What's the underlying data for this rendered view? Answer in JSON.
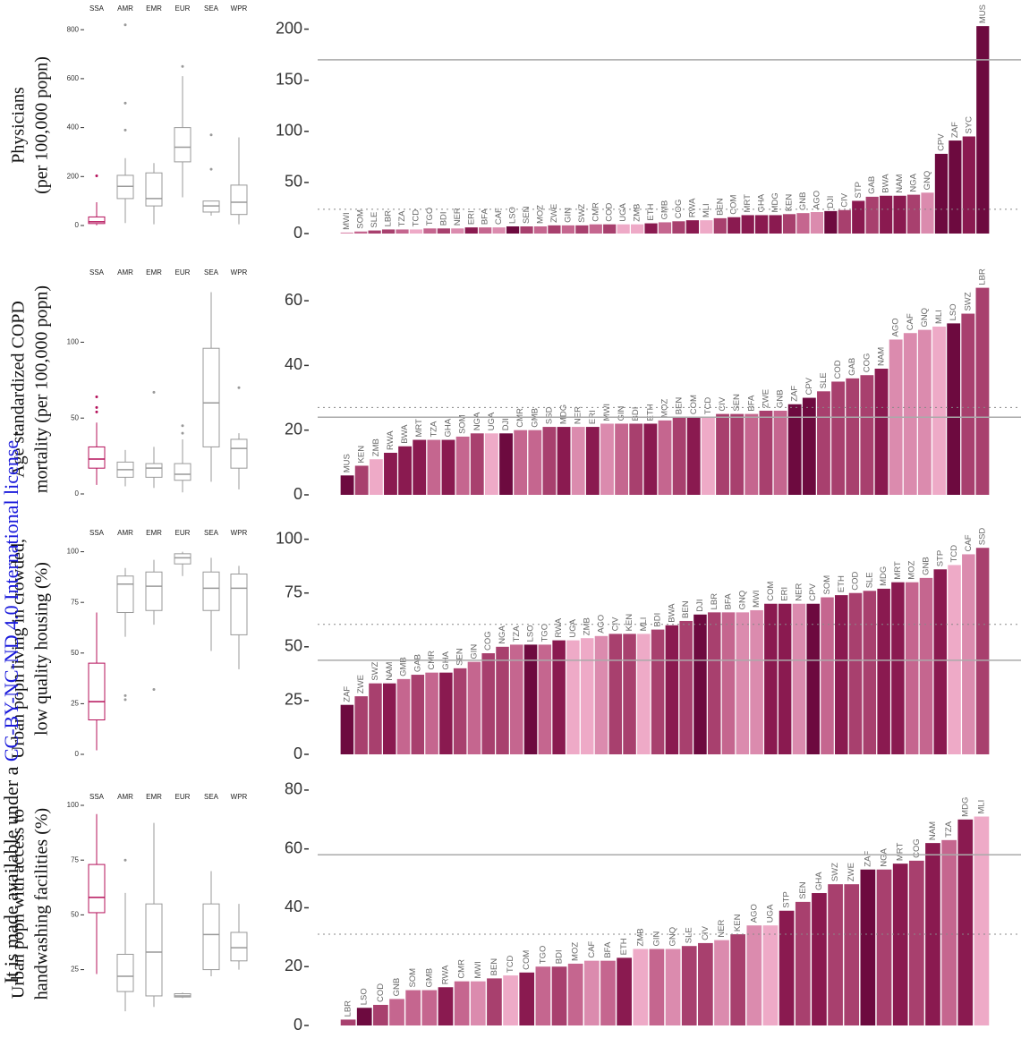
{
  "watermark": {
    "before": "It is made available under a ",
    "link": "CC-BY-NC-ND 4.0 International license",
    "after": " ."
  },
  "country_colors": {
    "MWI": "#db8bae",
    "SOM": "#c5668f",
    "SLE": "#a8406e",
    "LBR": "#a8406e",
    "TZA": "#c5668f",
    "TCD": "#eeaac7",
    "TGO": "#c5668f",
    "BDI": "#a8406e",
    "NER": "#db8bae",
    "ERI": "#8a1a50",
    "BFA": "#c5668f",
    "CAF": "#db8bae",
    "LSO": "#6d0a3f",
    "SEN": "#a8406e",
    "MOZ": "#c5668f",
    "ZWE": "#a8406e",
    "GIN": "#c5668f",
    "SWZ": "#a8406e",
    "CMR": "#c5668f",
    "COD": "#a8406e",
    "UGA": "#eeaac7",
    "ZMB": "#eeaac7",
    "ETH": "#8a1a50",
    "GMB": "#c5668f",
    "COG": "#a8406e",
    "RWA": "#8a1a50",
    "MLI": "#eeaac7",
    "BEN": "#a8406e",
    "COM": "#8a1a50",
    "MRT": "#8a1a50",
    "GHA": "#8a1a50",
    "MDG": "#8a1a50",
    "KEN": "#a8406e",
    "GNB": "#c5668f",
    "AGO": "#db8bae",
    "DJI": "#6d0a3f",
    "CIV": "#a8406e",
    "STP": "#8a1a50",
    "GAB": "#a8406e",
    "BWA": "#8a1a50",
    "NAM": "#8a1a50",
    "NGA": "#a8406e",
    "GNQ": "#db8bae",
    "CPV": "#6d0a3f",
    "ZAF": "#6d0a3f",
    "SYC": "#8a1a50",
    "MUS": "#6d0a3f",
    "SSD": "#a8406e"
  },
  "chart_data": [
    {
      "type": "box",
      "ylabel": [
        "Physicians",
        "(per 100,000 popn)"
      ],
      "categories": [
        "SSA",
        "AMR",
        "EMR",
        "EUR",
        "SEA",
        "WPR"
      ],
      "box_colors": [
        "#b5105a",
        "#999999",
        "#999999",
        "#999999",
        "#999999",
        "#999999"
      ],
      "boxes": [
        {
          "min": 1,
          "q1": 8,
          "median": 15,
          "q3": 35,
          "max": 95,
          "outliers": [
            203
          ]
        },
        {
          "min": 10,
          "q1": 110,
          "median": 160,
          "q3": 205,
          "max": 275,
          "outliers": [
            390,
            500,
            820
          ]
        },
        {
          "min": 5,
          "q1": 80,
          "median": 110,
          "q3": 215,
          "max": 255,
          "outliers": []
        },
        {
          "min": 115,
          "q1": 260,
          "median": 320,
          "q3": 400,
          "max": 610,
          "outliers": [
            650
          ]
        },
        {
          "min": 40,
          "q1": 55,
          "median": 80,
          "q3": 100,
          "max": 100,
          "outliers": [
            230,
            370
          ]
        },
        {
          "min": 5,
          "q1": 45,
          "median": 95,
          "q3": 165,
          "max": 360,
          "outliers": []
        }
      ],
      "ylim": [
        0,
        830
      ],
      "yticks": [
        0,
        200,
        400,
        600,
        800
      ]
    },
    {
      "type": "bar",
      "categories": [
        "MWI",
        "SOM",
        "SLE",
        "LBR",
        "TZA",
        "TCD",
        "TGO",
        "BDI",
        "NER",
        "ERI",
        "BFA",
        "CAF",
        "LSO",
        "SEN",
        "MOZ",
        "ZWE",
        "GIN",
        "SWZ",
        "CMR",
        "COD",
        "UGA",
        "ZMB",
        "ETH",
        "GMB",
        "COG",
        "RWA",
        "MLI",
        "BEN",
        "COM",
        "MRT",
        "GHA",
        "MDG",
        "KEN",
        "GNB",
        "AGO",
        "DJI",
        "CIV",
        "STP",
        "GAB",
        "BWA",
        "NAM",
        "NGA",
        "GNQ",
        "CPV",
        "ZAF",
        "SYC",
        "MUS"
      ],
      "values": [
        1,
        2,
        3,
        4,
        4,
        4,
        5,
        5,
        5,
        6,
        6,
        6,
        7,
        7,
        7,
        8,
        8,
        8,
        9,
        9,
        9,
        9,
        10,
        11,
        12,
        13,
        13,
        15,
        16,
        18,
        18,
        18,
        19,
        20,
        21,
        22,
        23,
        32,
        36,
        37,
        37,
        38,
        40,
        78,
        91,
        95,
        203
      ],
      "ylim": [
        0,
        211
      ],
      "yticks": [
        0,
        50,
        100,
        150,
        200
      ],
      "reference_lines": {
        "solid": 170,
        "dotted": 23.7
      }
    },
    {
      "type": "box",
      "ylabel": [
        "Age standardized COPD",
        "mortality (per 100,000 popn)"
      ],
      "categories": [
        "SSA",
        "AMR",
        "EMR",
        "EUR",
        "SEA",
        "WPR"
      ],
      "box_colors": [
        "#b5105a",
        "#999999",
        "#999999",
        "#999999",
        "#999999",
        "#999999"
      ],
      "boxes": [
        {
          "min": 6,
          "q1": 17,
          "median": 23,
          "q3": 31,
          "max": 47,
          "outliers": [
            54,
            57,
            64
          ]
        },
        {
          "min": 5,
          "q1": 11,
          "median": 16,
          "q3": 21,
          "max": 29,
          "outliers": []
        },
        {
          "min": 4,
          "q1": 11,
          "median": 17,
          "q3": 20,
          "max": 31,
          "outliers": [
            67
          ]
        },
        {
          "min": 1,
          "q1": 9,
          "median": 13,
          "q3": 20,
          "max": 36,
          "outliers": [
            40,
            45
          ]
        },
        {
          "min": 8,
          "q1": 31,
          "median": 60,
          "q3": 96,
          "max": 133,
          "outliers": []
        },
        {
          "min": 3,
          "q1": 17,
          "median": 30,
          "q3": 36,
          "max": 40,
          "outliers": [
            70
          ]
        }
      ],
      "ylim": [
        0,
        138
      ],
      "yticks": [
        0,
        50,
        100
      ]
    },
    {
      "type": "bar",
      "categories": [
        "MUS",
        "KEN",
        "ZMB",
        "RWA",
        "BWA",
        "MRT",
        "TZA",
        "GHA",
        "SOM",
        "NGA",
        "UGA",
        "DJI",
        "CMR",
        "GMB",
        "SSD",
        "MDG",
        "NER",
        "ERI",
        "MWI",
        "GIN",
        "BDI",
        "ETH",
        "MOZ",
        "BEN",
        "COM",
        "TCD",
        "CIV",
        "SEN",
        "BFA",
        "ZWE",
        "GNB",
        "ZAF",
        "CPV",
        "SLE",
        "COD",
        "GAB",
        "COG",
        "NAM",
        "AGO",
        "CAF",
        "GNQ",
        "MLI",
        "LSO",
        "SWZ",
        "LBR"
      ],
      "values": [
        6,
        9,
        11,
        13,
        15,
        17,
        17,
        17,
        18,
        19,
        19,
        19,
        20,
        20,
        21,
        21,
        21,
        21,
        22,
        22,
        22,
        22,
        23,
        24,
        24,
        24,
        25,
        25,
        25,
        26,
        26,
        28,
        30,
        32,
        35,
        36,
        37,
        39,
        48,
        50,
        51,
        52,
        53,
        56,
        64
      ],
      "ylim": [
        0,
        65
      ],
      "yticks": [
        0,
        20,
        40,
        60
      ],
      "reference_lines": {
        "solid": 24,
        "dotted": 27
      }
    },
    {
      "type": "box",
      "ylabel": [
        "Urban popn living in crowded,",
        "low quality housing (%)"
      ],
      "categories": [
        "SSA",
        "AMR",
        "EMR",
        "EUR",
        "SEA",
        "WPR"
      ],
      "box_colors": [
        "#b5105a",
        "#999999",
        "#999999",
        "#999999",
        "#999999",
        "#999999"
      ],
      "boxes": [
        {
          "min": 2,
          "q1": 17,
          "median": 26,
          "q3": 45,
          "max": 70,
          "outliers": []
        },
        {
          "min": 58,
          "q1": 70,
          "median": 84,
          "q3": 88,
          "max": 92,
          "outliers": [
            27,
            29
          ]
        },
        {
          "min": 64,
          "q1": 71,
          "median": 83,
          "q3": 90,
          "max": 96,
          "outliers": [
            32
          ]
        },
        {
          "min": 88,
          "q1": 94,
          "median": 97,
          "q3": 99,
          "max": 100,
          "outliers": []
        },
        {
          "min": 51,
          "q1": 71,
          "median": 82,
          "q3": 90,
          "max": 97,
          "outliers": []
        },
        {
          "min": 42,
          "q1": 59,
          "median": 82,
          "q3": 89,
          "max": 93,
          "outliers": []
        }
      ],
      "ylim": [
        0,
        106
      ],
      "yticks": [
        0,
        25,
        50,
        75,
        100
      ]
    },
    {
      "type": "bar",
      "categories": [
        "ZAF",
        "ZWE",
        "SWZ",
        "NAM",
        "GMB",
        "GAB",
        "CMR",
        "GHA",
        "SEN",
        "GIN",
        "COG",
        "NGA",
        "TZA",
        "LSO",
        "TGO",
        "RWA",
        "UGA",
        "ZMB",
        "AGO",
        "CIV",
        "KEN",
        "MLI",
        "BDI",
        "BWA",
        "BEN",
        "DJI",
        "LBR",
        "BFA",
        "GNQ",
        "MWI",
        "COM",
        "ERI",
        "NER",
        "CPV",
        "SOM",
        "ETH",
        "COD",
        "SLE",
        "MDG",
        "MRT",
        "MOZ",
        "GNB",
        "STP",
        "TCD",
        "CAF",
        "SSD"
      ],
      "values": [
        23,
        27,
        33,
        33,
        35,
        37,
        38,
        38,
        40,
        43,
        47,
        50,
        51,
        51,
        51,
        53,
        53,
        54,
        55,
        56,
        56,
        56,
        58,
        60,
        62,
        65,
        66,
        66,
        66,
        67,
        70,
        70,
        70,
        70,
        73,
        74,
        75,
        76,
        77,
        80,
        80,
        82,
        86,
        88,
        93,
        96
      ],
      "ylim": [
        0,
        104
      ],
      "yticks": [
        0,
        25,
        50,
        75,
        100
      ],
      "reference_lines": {
        "solid": 43.75,
        "dotted": 60.4
      }
    },
    {
      "type": "box",
      "ylabel": [
        "Urban popn with access to",
        "handwashing facilities (%)"
      ],
      "categories": [
        "SSA",
        "AMR",
        "EMR",
        "EUR",
        "SEA",
        "WPR"
      ],
      "box_colors": [
        "#b5105a",
        "#999999",
        "#999999",
        "#999999",
        "#999999",
        "#999999"
      ],
      "boxes": [
        {
          "min": 23,
          "q1": 51,
          "median": 58,
          "q3": 73,
          "max": 96,
          "outliers": []
        },
        {
          "min": 6,
          "q1": 15,
          "median": 22,
          "q3": 32,
          "max": 60,
          "outliers": [
            75
          ]
        },
        {
          "min": 8,
          "q1": 13,
          "median": 33,
          "q3": 55,
          "max": 92,
          "outliers": []
        },
        {
          "min": 12,
          "q1": 12.5,
          "median": 13,
          "q3": 14,
          "max": 14.5,
          "outliers": []
        },
        {
          "min": 22,
          "q1": 25,
          "median": 41,
          "q3": 55,
          "max": 70,
          "outliers": []
        },
        {
          "min": 25,
          "q1": 29,
          "median": 35,
          "q3": 42,
          "max": 55,
          "outliers": []
        }
      ],
      "ylim": [
        4,
        100
      ],
      "yticks": [
        25,
        50,
        75,
        100
      ]
    },
    {
      "type": "bar",
      "categories": [
        "LBR",
        "LSO",
        "COD",
        "GNB",
        "SOM",
        "GMB",
        "RWA",
        "CMR",
        "MWI",
        "BEN",
        "TCD",
        "COM",
        "TGO",
        "BDI",
        "MOZ",
        "CAF",
        "BFA",
        "ETH",
        "ZMB",
        "GIN",
        "GNQ",
        "SLE",
        "CIV",
        "NER",
        "KEN",
        "AGO",
        "UGA",
        "STP",
        "SEN",
        "GHA",
        "SWZ",
        "ZWE",
        "ZAF",
        "NGA",
        "MRT",
        "COG",
        "NAM",
        "TZA",
        "MDG",
        "MLI"
      ],
      "values": [
        2,
        6,
        7,
        9,
        12,
        12,
        13,
        15,
        15,
        16,
        17,
        18,
        20,
        20,
        21,
        22,
        22,
        23,
        26,
        26,
        26,
        27,
        28,
        29,
        31,
        34,
        34,
        39,
        42,
        45,
        48,
        48,
        53,
        53,
        55,
        56,
        62,
        63,
        70,
        71
      ],
      "ylim": [
        0,
        81.5
      ],
      "yticks": [
        0,
        20,
        40,
        60,
        80
      ],
      "reference_lines": {
        "solid": 58,
        "dotted": 31
      }
    }
  ]
}
